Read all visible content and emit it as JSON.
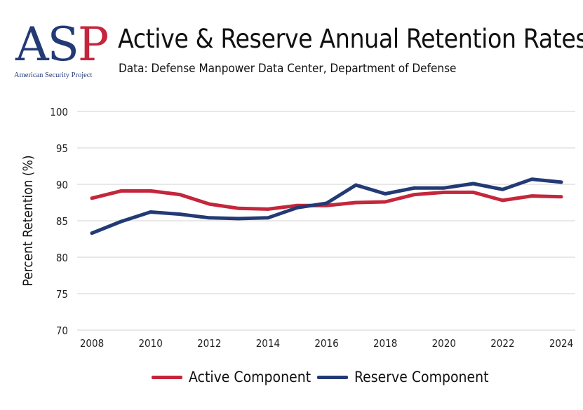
{
  "header": {
    "logo_letters_as": "AS",
    "logo_letter_p": "P",
    "logo_subtitle": "American Security Project",
    "title": "Active & Reserve Annual Retention Rates",
    "subtitle": "Data: Defense Manpower Data Center, Department of Defense"
  },
  "colors": {
    "active": "#c4263b",
    "reserve": "#223a75",
    "grid": "#d0d0d0",
    "logo_blue": "#223a75",
    "logo_red": "#c4263b"
  },
  "chart_data": {
    "type": "line",
    "title": "Active & Reserve Annual Retention Rates",
    "subtitle": "Data: Defense Manpower Data Center, Department of Defense",
    "xlabel": "",
    "ylabel": "Percent Retention (%)",
    "ylim": [
      70,
      100
    ],
    "yticks": [
      70,
      75,
      80,
      85,
      90,
      95,
      100
    ],
    "xlim": [
      2008,
      2024
    ],
    "xticks": [
      2008,
      2010,
      2012,
      2014,
      2016,
      2018,
      2020,
      2022,
      2024
    ],
    "grid": "horizontal",
    "legend_position": "bottom",
    "x": [
      2008,
      2009,
      2010,
      2011,
      2012,
      2013,
      2014,
      2015,
      2016,
      2017,
      2018,
      2019,
      2020,
      2021,
      2022,
      2023,
      2024
    ],
    "series": [
      {
        "name": "Active Component",
        "color": "#c4263b",
        "values": [
          88.1,
          89.1,
          89.1,
          88.6,
          87.3,
          86.7,
          86.6,
          87.1,
          87.1,
          87.5,
          87.6,
          88.6,
          88.9,
          88.9,
          87.8,
          88.4,
          88.3
        ]
      },
      {
        "name": "Reserve Component",
        "color": "#223a75",
        "values": [
          83.3,
          84.9,
          86.2,
          85.9,
          85.4,
          85.3,
          85.4,
          86.8,
          87.4,
          89.9,
          88.7,
          89.5,
          89.5,
          90.1,
          89.3,
          90.7,
          90.3
        ]
      }
    ]
  }
}
